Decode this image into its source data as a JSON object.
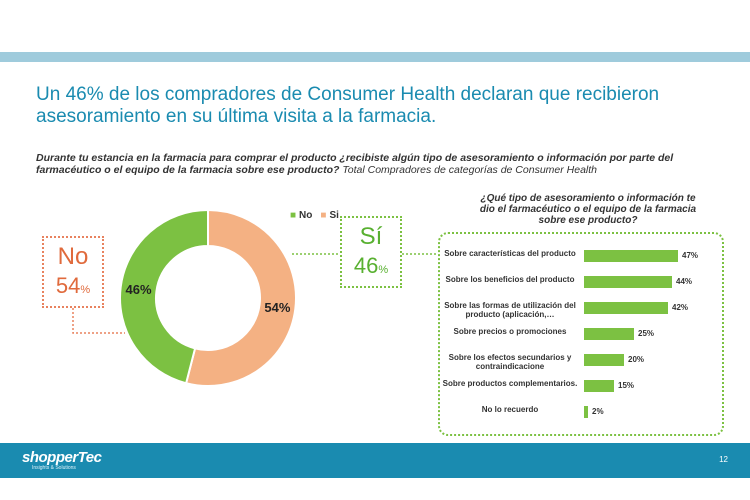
{
  "headline": {
    "line1": "Un 46% de los compradores de Consumer Health declaran que recibieron",
    "line2": "asesoramiento en su última visita a la farmacia."
  },
  "question": {
    "bold_text": "Durante tu estancia en la farmacia para comprar el producto ¿recibiste algún tipo de asesoramiento o información por parte del farmacéutico o el equipo de la farmacia sobre ese producto?",
    "plain_text": " Total Compradores de categorías de Consumer Health"
  },
  "colors": {
    "no": "#f4b183",
    "si": "#7cc142",
    "no_text": "#e06a3c",
    "si_text": "#58b030",
    "accent": "#1a8bb0"
  },
  "callouts": {
    "no": {
      "label": "No",
      "value": "54",
      "unit": "%"
    },
    "si": {
      "label": "Sí",
      "value": "46",
      "unit": "%"
    }
  },
  "panel_title": "¿Qué tipo de asesoramiento o información te dio el farmacéutico o el equipo de la farmacia sobre ese producto?",
  "footer": {
    "logo": "shopperTec",
    "logo_sub": "Insights & Solutions",
    "page": "12"
  },
  "chart_data": [
    {
      "type": "pie",
      "style": "donut",
      "labels": [
        "No",
        "Si"
      ],
      "values": [
        54,
        46
      ],
      "data_labels": [
        "54%",
        "46%"
      ],
      "legend": [
        "No",
        "Si"
      ],
      "legend_position": "top-right"
    },
    {
      "type": "bar",
      "orientation": "horizontal",
      "title": "¿Qué tipo de asesoramiento o información te dio el farmacéutico o el equipo de la farmacia sobre ese producto?",
      "categories": [
        "Sobre características del producto",
        "Sobre los beneficios del producto",
        "Sobre las formas de utilización del producto (aplicación,…",
        "Sobre precios o promociones",
        "Sobre los efectos secundarios y contraindicacione",
        "Sobre productos complementarios.",
        "No lo recuerdo"
      ],
      "values": [
        47,
        44,
        42,
        25,
        20,
        15,
        2
      ],
      "data_labels": [
        "47%",
        "44%",
        "42%",
        "25%",
        "20%",
        "15%",
        "2%"
      ],
      "xlim": [
        0,
        50
      ]
    }
  ]
}
